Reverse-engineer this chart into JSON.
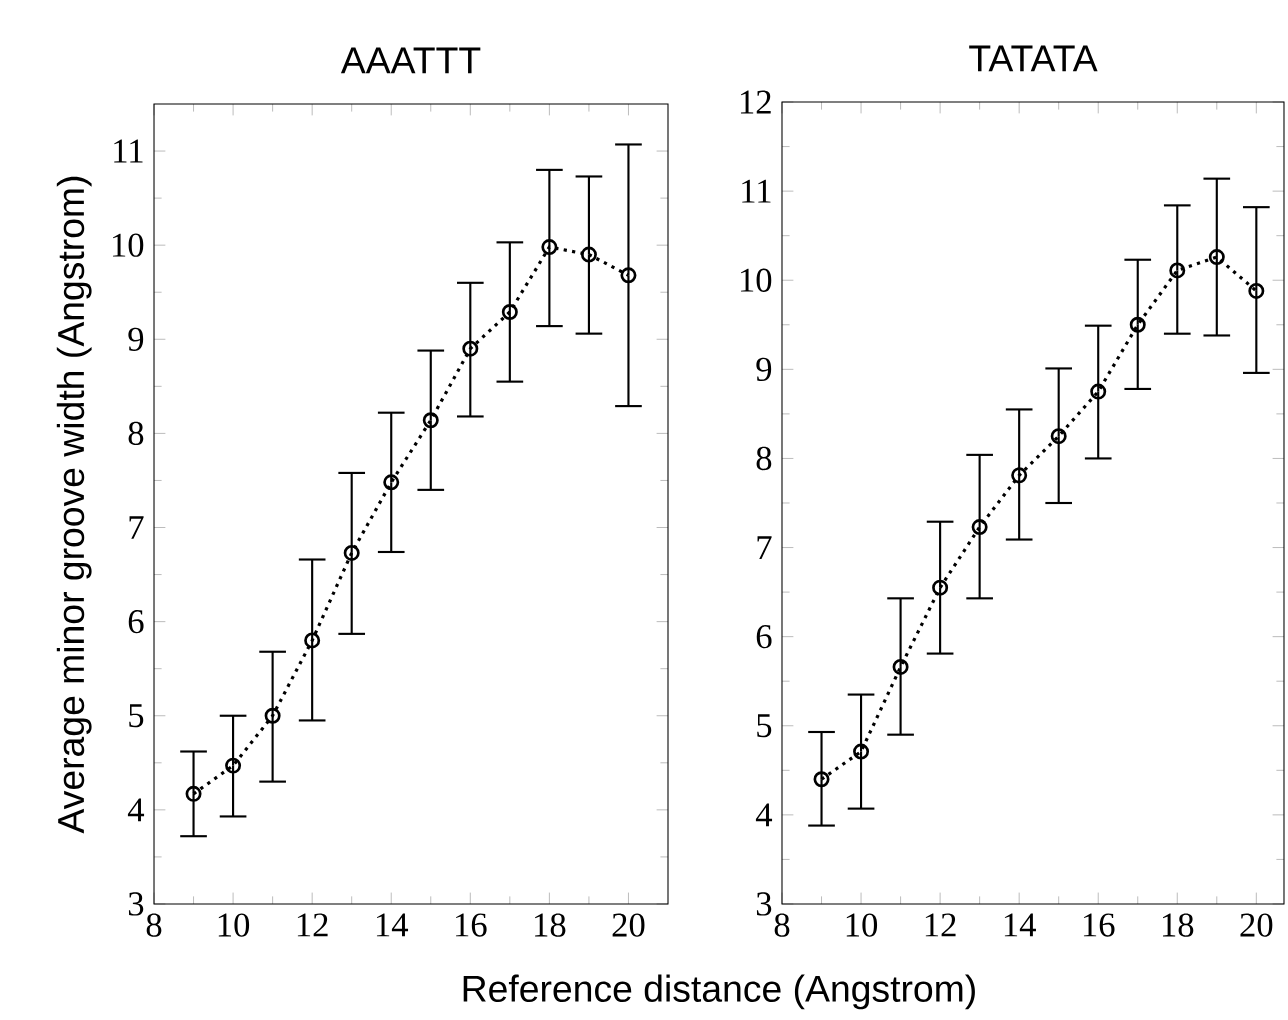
{
  "chart_data": [
    {
      "type": "line",
      "title": "AAATTT",
      "xlabel": "Reference distance (Angstrom)",
      "ylabel": "Average minor groove width (Angstrom)",
      "x": [
        9,
        10,
        11,
        12,
        13,
        14,
        15,
        16,
        17,
        18,
        19,
        20
      ],
      "series": [
        {
          "color": "#000000",
          "values": [
            4.17,
            4.47,
            5.0,
            5.8,
            6.73,
            7.48,
            8.14,
            8.9,
            9.29,
            9.98,
            9.9,
            9.68
          ],
          "errors": [
            [
              3.72,
              4.62
            ],
            [
              3.93,
              5.0
            ],
            [
              4.3,
              5.68
            ],
            [
              4.95,
              6.66
            ],
            [
              5.87,
              7.58
            ],
            [
              6.74,
              8.22
            ],
            [
              7.4,
              8.88
            ],
            [
              8.18,
              9.6
            ],
            [
              8.55,
              10.03
            ],
            [
              9.14,
              10.8
            ],
            [
              9.06,
              10.73
            ],
            [
              8.29,
              11.07
            ]
          ]
        }
      ],
      "xlim": [
        8,
        21
      ],
      "ylim": [
        3,
        11.5
      ],
      "xticks": [
        8,
        10,
        12,
        14,
        16,
        18,
        20
      ],
      "yticks": [
        3,
        4,
        5,
        6,
        7,
        8,
        9,
        10,
        11
      ],
      "marker": "circle",
      "line_style": "dotted",
      "grid": false
    },
    {
      "type": "line",
      "title": "TATATA",
      "x": [
        9,
        10,
        11,
        12,
        13,
        14,
        15,
        16,
        17,
        18,
        19,
        20
      ],
      "series": [
        {
          "color": "#000000",
          "values": [
            4.4,
            4.71,
            5.66,
            6.55,
            7.23,
            7.81,
            8.25,
            8.75,
            9.5,
            10.11,
            10.26,
            9.88
          ],
          "errors": [
            [
              3.88,
              4.93
            ],
            [
              4.07,
              5.35
            ],
            [
              4.9,
              6.43
            ],
            [
              5.81,
              7.29
            ],
            [
              6.43,
              8.04
            ],
            [
              7.09,
              8.55
            ],
            [
              7.5,
              9.01
            ],
            [
              8.0,
              9.49
            ],
            [
              8.78,
              10.23
            ],
            [
              9.4,
              10.84
            ],
            [
              9.38,
              11.14
            ],
            [
              8.96,
              10.82
            ]
          ]
        }
      ],
      "xlim": [
        8,
        20.7
      ],
      "ylim": [
        3,
        12
      ],
      "xticks": [
        8,
        10,
        12,
        14,
        16,
        18,
        20
      ],
      "yticks": [
        3,
        4,
        5,
        6,
        7,
        8,
        9,
        10,
        11,
        12
      ],
      "marker": "circle",
      "line_style": "dotted",
      "grid": false
    }
  ]
}
